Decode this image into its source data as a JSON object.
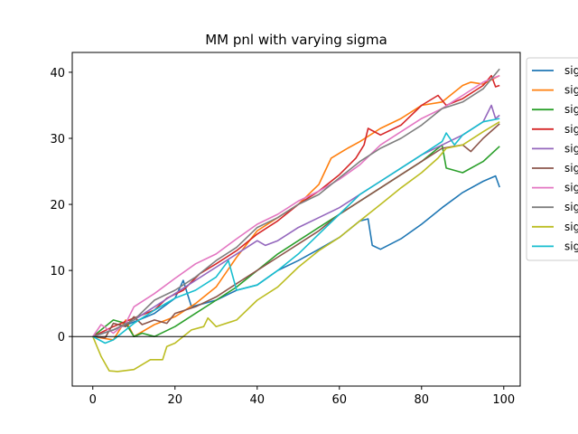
{
  "chart_data": {
    "type": "line",
    "title": "MM pnl with varying sigma",
    "xlabel": "",
    "ylabel": "",
    "xlim": [
      -5,
      104
    ],
    "ylim": [
      -7.5,
      43
    ],
    "xticks": [
      0,
      20,
      40,
      60,
      80,
      100
    ],
    "yticks": [
      0,
      10,
      20,
      30,
      40
    ],
    "hline": 0,
    "grid": false,
    "legend_placement": "outside-right-top",
    "legend_entries_visible_text": [
      "sig",
      "sig",
      "sig",
      "sig",
      "sig",
      "sig",
      "sig",
      "sig",
      "sig",
      "sig"
    ],
    "series": [
      {
        "color": "#1f77b4",
        "points": [
          [
            0,
            0
          ],
          [
            5,
            1
          ],
          [
            10,
            2.2
          ],
          [
            15,
            3.5
          ],
          [
            20,
            5.8
          ],
          [
            22,
            8.5
          ],
          [
            24,
            4.5
          ],
          [
            30,
            5.5
          ],
          [
            35,
            7
          ],
          [
            40,
            7.8
          ],
          [
            45,
            10
          ],
          [
            50,
            11.5
          ],
          [
            55,
            13.2
          ],
          [
            60,
            15
          ],
          [
            65,
            17.5
          ],
          [
            67,
            17.8
          ],
          [
            68,
            13.8
          ],
          [
            70,
            13.2
          ],
          [
            75,
            14.8
          ],
          [
            80,
            17
          ],
          [
            85,
            19.5
          ],
          [
            90,
            21.8
          ],
          [
            95,
            23.5
          ],
          [
            98,
            24.3
          ],
          [
            99,
            22.6
          ]
        ]
      },
      {
        "color": "#ff7f0e",
        "points": [
          [
            0,
            0
          ],
          [
            5,
            -0.5
          ],
          [
            8,
            2.5
          ],
          [
            10,
            0
          ],
          [
            15,
            1.8
          ],
          [
            20,
            3
          ],
          [
            25,
            5
          ],
          [
            30,
            7.5
          ],
          [
            35,
            12
          ],
          [
            40,
            16
          ],
          [
            45,
            18
          ],
          [
            50,
            20
          ],
          [
            55,
            23
          ],
          [
            58,
            27
          ],
          [
            62,
            28.5
          ],
          [
            65,
            29.5
          ],
          [
            70,
            31.5
          ],
          [
            75,
            33
          ],
          [
            80,
            35
          ],
          [
            85,
            35.5
          ],
          [
            90,
            38
          ],
          [
            92,
            38.5
          ],
          [
            95,
            38.2
          ],
          [
            99,
            39.5
          ]
        ]
      },
      {
        "color": "#2ca02c",
        "points": [
          [
            0,
            0
          ],
          [
            5,
            2.5
          ],
          [
            8,
            2
          ],
          [
            10,
            0
          ],
          [
            12,
            0.5
          ],
          [
            15,
            0
          ],
          [
            20,
            1.5
          ],
          [
            25,
            3.5
          ],
          [
            30,
            5.5
          ],
          [
            35,
            7.5
          ],
          [
            40,
            10
          ],
          [
            45,
            12.5
          ],
          [
            50,
            14.5
          ],
          [
            55,
            16.5
          ],
          [
            60,
            18.5
          ],
          [
            65,
            20.5
          ],
          [
            70,
            22.5
          ],
          [
            75,
            24.5
          ],
          [
            80,
            26.5
          ],
          [
            85,
            29
          ],
          [
            86,
            25.5
          ],
          [
            90,
            24.8
          ],
          [
            95,
            26.5
          ],
          [
            99,
            28.8
          ]
        ]
      },
      {
        "color": "#d62728",
        "points": [
          [
            0,
            0
          ],
          [
            5,
            1.5
          ],
          [
            10,
            2.8
          ],
          [
            15,
            4
          ],
          [
            18,
            5.8
          ],
          [
            22,
            7
          ],
          [
            26,
            9.5
          ],
          [
            30,
            11
          ],
          [
            35,
            13
          ],
          [
            40,
            15.5
          ],
          [
            45,
            17.5
          ],
          [
            50,
            20
          ],
          [
            55,
            22
          ],
          [
            60,
            24.5
          ],
          [
            64,
            27
          ],
          [
            66,
            29
          ],
          [
            67,
            31.5
          ],
          [
            70,
            30.5
          ],
          [
            75,
            32
          ],
          [
            80,
            35
          ],
          [
            84,
            36.5
          ],
          [
            86,
            35
          ],
          [
            90,
            36
          ],
          [
            95,
            38
          ],
          [
            97,
            39.5
          ],
          [
            98,
            37.8
          ],
          [
            99,
            38
          ]
        ]
      },
      {
        "color": "#9467bd",
        "points": [
          [
            0,
            0
          ],
          [
            5,
            1
          ],
          [
            10,
            2.5
          ],
          [
            15,
            4.5
          ],
          [
            20,
            6.5
          ],
          [
            25,
            8.5
          ],
          [
            30,
            10.5
          ],
          [
            35,
            12.5
          ],
          [
            40,
            14.5
          ],
          [
            42,
            13.8
          ],
          [
            45,
            14.5
          ],
          [
            50,
            16.5
          ],
          [
            55,
            18
          ],
          [
            60,
            19.5
          ],
          [
            65,
            21.5
          ],
          [
            70,
            23.5
          ],
          [
            75,
            25.5
          ],
          [
            80,
            27.5
          ],
          [
            85,
            29
          ],
          [
            90,
            30.5
          ],
          [
            95,
            32.5
          ],
          [
            97,
            35
          ],
          [
            98,
            33
          ],
          [
            99,
            33.5
          ]
        ]
      },
      {
        "color": "#8c564b",
        "points": [
          [
            0,
            0
          ],
          [
            3,
            -0.2
          ],
          [
            5,
            2
          ],
          [
            8,
            1.5
          ],
          [
            10,
            3
          ],
          [
            12,
            1.8
          ],
          [
            15,
            2.5
          ],
          [
            18,
            2
          ],
          [
            20,
            3.5
          ],
          [
            25,
            4.5
          ],
          [
            30,
            6
          ],
          [
            35,
            8
          ],
          [
            40,
            10
          ],
          [
            45,
            12
          ],
          [
            50,
            14
          ],
          [
            55,
            16
          ],
          [
            60,
            18.5
          ],
          [
            65,
            20.5
          ],
          [
            70,
            22.5
          ],
          [
            75,
            24.5
          ],
          [
            80,
            26.5
          ],
          [
            85,
            28.5
          ],
          [
            90,
            29
          ],
          [
            92,
            28
          ],
          [
            95,
            30
          ],
          [
            99,
            32.2
          ]
        ]
      },
      {
        "color": "#e377c2",
        "points": [
          [
            0,
            0
          ],
          [
            2,
            1.8
          ],
          [
            5,
            0.5
          ],
          [
            8,
            2
          ],
          [
            10,
            4.5
          ],
          [
            15,
            6.5
          ],
          [
            20,
            8.8
          ],
          [
            25,
            11
          ],
          [
            30,
            12.5
          ],
          [
            35,
            14.8
          ],
          [
            40,
            17
          ],
          [
            45,
            18.5
          ],
          [
            50,
            20.5
          ],
          [
            55,
            22
          ],
          [
            60,
            23.8
          ],
          [
            65,
            26
          ],
          [
            70,
            29
          ],
          [
            75,
            31
          ],
          [
            80,
            33
          ],
          [
            85,
            34.5
          ],
          [
            90,
            36.5
          ],
          [
            95,
            38.5
          ],
          [
            99,
            39.5
          ]
        ]
      },
      {
        "color": "#7f7f7f",
        "points": [
          [
            0,
            0
          ],
          [
            5,
            1
          ],
          [
            10,
            2.5
          ],
          [
            15,
            5.5
          ],
          [
            20,
            7
          ],
          [
            25,
            9
          ],
          [
            30,
            11.5
          ],
          [
            35,
            13.5
          ],
          [
            40,
            16.5
          ],
          [
            45,
            18
          ],
          [
            50,
            20
          ],
          [
            55,
            21.5
          ],
          [
            60,
            24
          ],
          [
            65,
            26.5
          ],
          [
            70,
            28.5
          ],
          [
            75,
            30
          ],
          [
            80,
            32
          ],
          [
            85,
            34.5
          ],
          [
            90,
            35.5
          ],
          [
            95,
            37.5
          ],
          [
            99,
            40.5
          ]
        ]
      },
      {
        "color": "#bcbd22",
        "points": [
          [
            0,
            0
          ],
          [
            2,
            -3
          ],
          [
            4,
            -5.2
          ],
          [
            6,
            -5.3
          ],
          [
            10,
            -5
          ],
          [
            14,
            -3.5
          ],
          [
            17,
            -3.5
          ],
          [
            18,
            -1.5
          ],
          [
            20,
            -1
          ],
          [
            24,
            1
          ],
          [
            27,
            1.5
          ],
          [
            28,
            2.8
          ],
          [
            30,
            1.5
          ],
          [
            35,
            2.5
          ],
          [
            40,
            5.5
          ],
          [
            45,
            7.5
          ],
          [
            50,
            10.5
          ],
          [
            55,
            13
          ],
          [
            60,
            15
          ],
          [
            65,
            17.5
          ],
          [
            70,
            20
          ],
          [
            75,
            22.5
          ],
          [
            80,
            24.8
          ],
          [
            84,
            27
          ],
          [
            86,
            28.5
          ],
          [
            90,
            29
          ],
          [
            95,
            31
          ],
          [
            99,
            32.5
          ]
        ]
      },
      {
        "color": "#17becf",
        "points": [
          [
            0,
            0
          ],
          [
            3,
            -1
          ],
          [
            5,
            -0.5
          ],
          [
            10,
            2
          ],
          [
            15,
            4
          ],
          [
            20,
            5.8
          ],
          [
            25,
            7
          ],
          [
            30,
            9
          ],
          [
            33,
            11.5
          ],
          [
            35,
            7
          ],
          [
            40,
            7.8
          ],
          [
            45,
            10
          ],
          [
            50,
            12.5
          ],
          [
            55,
            15.5
          ],
          [
            60,
            18.5
          ],
          [
            65,
            21.5
          ],
          [
            70,
            23.5
          ],
          [
            75,
            25.5
          ],
          [
            80,
            27.5
          ],
          [
            85,
            29.5
          ],
          [
            86,
            30.8
          ],
          [
            88,
            29
          ],
          [
            90,
            30.5
          ],
          [
            95,
            32.5
          ],
          [
            99,
            33
          ]
        ]
      }
    ]
  }
}
